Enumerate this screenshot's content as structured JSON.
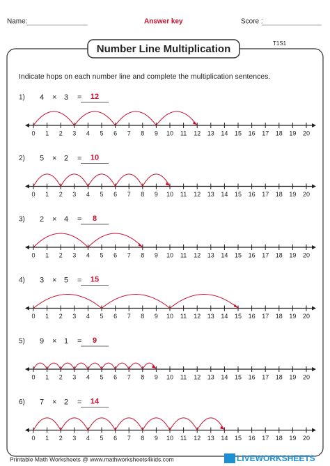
{
  "header": {
    "name_label": "Name:",
    "answer_key": "Answer key",
    "score_label": "Score :",
    "title": "Number Line Multiplication",
    "code": "T1S1"
  },
  "instructions": "Indicate hops on each number line and complete the multiplication sentences.",
  "operators": {
    "times": "×",
    "equals": "="
  },
  "problems": [
    {
      "number": "1)",
      "a": 4,
      "b": 3,
      "answer": 12
    },
    {
      "number": "2)",
      "a": 5,
      "b": 2,
      "answer": 10
    },
    {
      "number": "3)",
      "a": 2,
      "b": 4,
      "answer": 8
    },
    {
      "number": "4)",
      "a": 3,
      "b": 5,
      "answer": 15
    },
    {
      "number": "5)",
      "a": 9,
      "b": 1,
      "answer": 9
    },
    {
      "number": "6)",
      "a": 7,
      "b": 2,
      "answer": 14
    }
  ],
  "number_line": {
    "labels": [
      0,
      1,
      2,
      3,
      4,
      5,
      6,
      7,
      8,
      9,
      10,
      11,
      12,
      13,
      14,
      15,
      16,
      17,
      18,
      19,
      20
    ]
  },
  "footer": {
    "credit": "Printable Math Worksheets @ www.mathworksheets4kids.com",
    "logo": "LIVEWORKSHEETS"
  }
}
